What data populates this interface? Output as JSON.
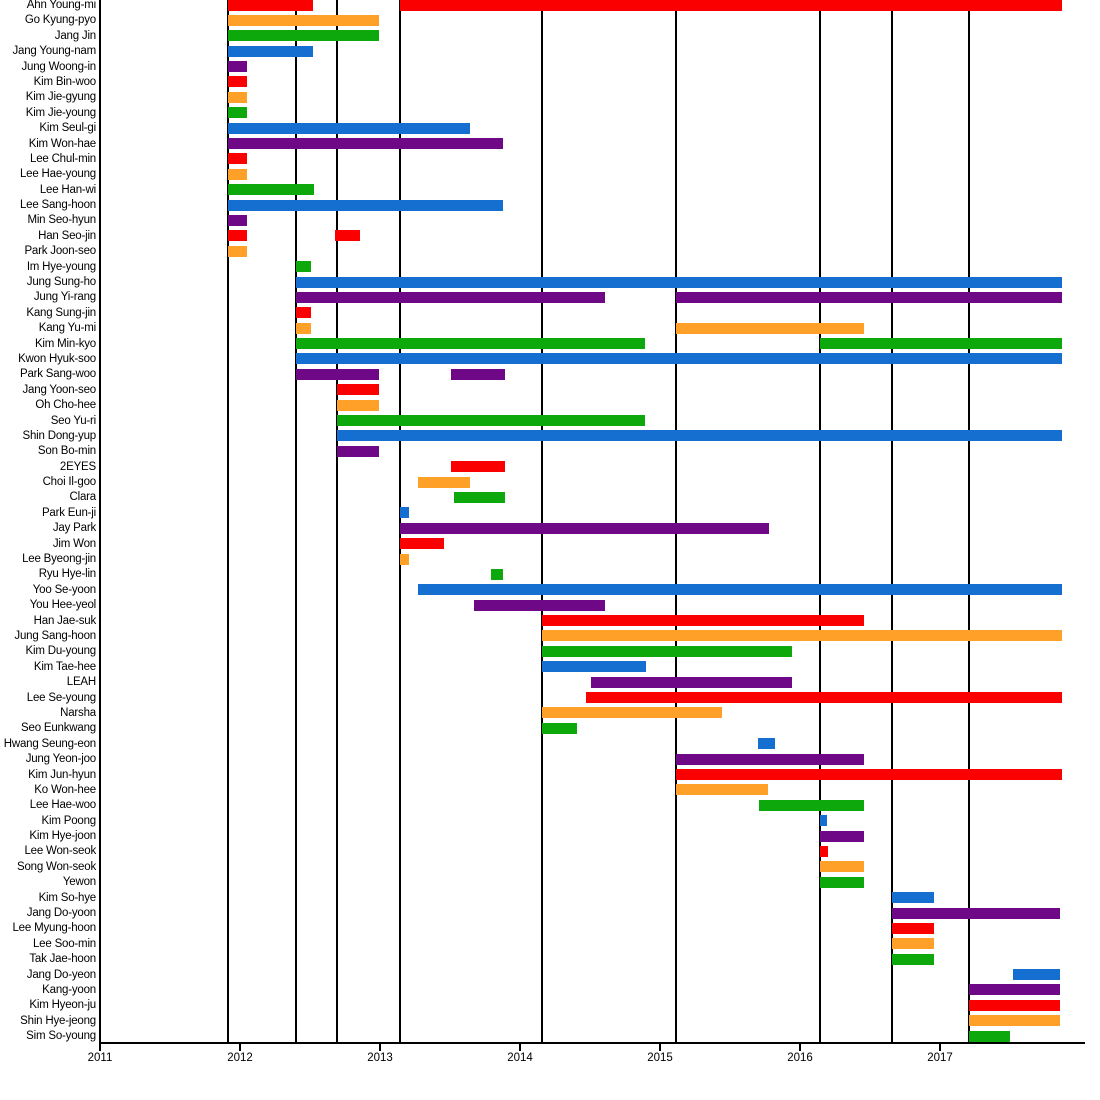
{
  "chart_data": {
    "type": "bar",
    "subtype": "gantt-timeline",
    "title": "",
    "xlabel": "",
    "ylabel": "",
    "legend": "none",
    "x_axis": {
      "range": [
        2011,
        2018.05
      ],
      "ticks": [
        {
          "value": 2011,
          "label": "2011"
        },
        {
          "value": 2012,
          "label": "2012"
        },
        {
          "value": 2013,
          "label": "2013"
        },
        {
          "value": 2014,
          "label": "2014"
        },
        {
          "value": 2015,
          "label": "2015"
        },
        {
          "value": 2016,
          "label": "2016"
        },
        {
          "value": 2017,
          "label": "2017"
        }
      ],
      "season_gridlines": [
        2011.914,
        2012.4,
        2012.693,
        2013.143,
        2014.157,
        2015.114,
        2016.143,
        2016.657,
        2017.207
      ]
    },
    "palette": {
      "red": "#FB0000",
      "orange": "#FFA128",
      "green": "#0CA80C",
      "blue": "#146FD0",
      "purple": "#6E0887"
    },
    "axis_color": "#000000",
    "members": [
      {
        "name": "Ahn Young-mi",
        "color": "red",
        "bars": [
          [
            2011.914,
            2012.52
          ],
          [
            2013.143,
            2017.87
          ]
        ]
      },
      {
        "name": "Go Kyung-pyo",
        "color": "orange",
        "bars": [
          [
            2011.914,
            2012.99
          ]
        ]
      },
      {
        "name": "Jang Jin",
        "color": "green",
        "bars": [
          [
            2011.914,
            2012.99
          ]
        ]
      },
      {
        "name": "Jang Young-nam",
        "color": "blue",
        "bars": [
          [
            2011.914,
            2012.52
          ]
        ]
      },
      {
        "name": "Jung Woong-in",
        "color": "purple",
        "bars": [
          [
            2011.914,
            2012.05
          ]
        ]
      },
      {
        "name": "Kim Bin-woo",
        "color": "red",
        "bars": [
          [
            2011.914,
            2012.05
          ]
        ]
      },
      {
        "name": "Kim Jie-gyung",
        "color": "orange",
        "bars": [
          [
            2011.914,
            2012.05
          ]
        ]
      },
      {
        "name": "Kim Jie-young",
        "color": "green",
        "bars": [
          [
            2011.914,
            2012.05
          ]
        ]
      },
      {
        "name": "Kim Seul-gi",
        "color": "blue",
        "bars": [
          [
            2011.914,
            2013.64
          ]
        ]
      },
      {
        "name": "Kim Won-hae",
        "color": "purple",
        "bars": [
          [
            2011.914,
            2013.88
          ]
        ]
      },
      {
        "name": "Lee Chul-min",
        "color": "red",
        "bars": [
          [
            2011.914,
            2012.05
          ]
        ]
      },
      {
        "name": "Lee Hae-young",
        "color": "orange",
        "bars": [
          [
            2011.914,
            2012.05
          ]
        ]
      },
      {
        "name": "Lee Han-wi",
        "color": "green",
        "bars": [
          [
            2011.914,
            2012.53
          ]
        ]
      },
      {
        "name": "Lee Sang-hoon",
        "color": "blue",
        "bars": [
          [
            2011.914,
            2013.88
          ]
        ]
      },
      {
        "name": "Min Seo-hyun",
        "color": "purple",
        "bars": [
          [
            2011.914,
            2012.05
          ]
        ]
      },
      {
        "name": "Han Seo-jin",
        "color": "red",
        "bars": [
          [
            2011.914,
            2012.05
          ],
          [
            2012.68,
            2012.86
          ]
        ]
      },
      {
        "name": "Park Joon-seo",
        "color": "orange",
        "bars": [
          [
            2011.914,
            2012.05
          ]
        ]
      },
      {
        "name": "Im Hye-young",
        "color": "green",
        "bars": [
          [
            2012.4,
            2012.51
          ]
        ]
      },
      {
        "name": "Jung Sung-ho",
        "color": "blue",
        "bars": [
          [
            2012.4,
            2017.87
          ]
        ]
      },
      {
        "name": "Jung Yi-rang",
        "color": "purple",
        "bars": [
          [
            2012.4,
            2014.61
          ],
          [
            2015.114,
            2017.87
          ]
        ]
      },
      {
        "name": "Kang Sung-jin",
        "color": "red",
        "bars": [
          [
            2012.4,
            2012.51
          ]
        ]
      },
      {
        "name": "Kang Yu-mi",
        "color": "orange",
        "bars": [
          [
            2012.4,
            2012.51
          ],
          [
            2015.114,
            2016.46
          ]
        ]
      },
      {
        "name": "Kim Min-kyo",
        "color": "green",
        "bars": [
          [
            2012.4,
            2014.89
          ],
          [
            2016.143,
            2017.87
          ]
        ]
      },
      {
        "name": "Kwon Hyuk-soo",
        "color": "blue",
        "bars": [
          [
            2012.4,
            2017.87
          ]
        ]
      },
      {
        "name": "Park Sang-woo",
        "color": "purple",
        "bars": [
          [
            2012.4,
            2012.99
          ],
          [
            2013.51,
            2013.89
          ]
        ]
      },
      {
        "name": "Jang Yoon-seo",
        "color": "red",
        "bars": [
          [
            2012.693,
            2012.99
          ]
        ]
      },
      {
        "name": "Oh Cho-hee",
        "color": "orange",
        "bars": [
          [
            2012.693,
            2012.99
          ]
        ]
      },
      {
        "name": "Seo Yu-ri",
        "color": "green",
        "bars": [
          [
            2012.693,
            2014.89
          ]
        ]
      },
      {
        "name": "Shin Dong-yup",
        "color": "blue",
        "bars": [
          [
            2012.693,
            2017.87
          ]
        ]
      },
      {
        "name": "Son Bo-min",
        "color": "purple",
        "bars": [
          [
            2012.693,
            2012.99
          ]
        ]
      },
      {
        "name": "2EYES",
        "color": "red",
        "bars": [
          [
            2013.51,
            2013.89
          ]
        ]
      },
      {
        "name": "Choi Il-goo",
        "color": "orange",
        "bars": [
          [
            2013.27,
            2013.64
          ]
        ]
      },
      {
        "name": "Clara",
        "color": "green",
        "bars": [
          [
            2013.53,
            2013.89
          ]
        ]
      },
      {
        "name": "Park Eun-ji",
        "color": "blue",
        "bars": [
          [
            2013.143,
            2013.21
          ]
        ]
      },
      {
        "name": "Jay Park",
        "color": "purple",
        "bars": [
          [
            2013.143,
            2015.78
          ]
        ]
      },
      {
        "name": "Jim Won",
        "color": "red",
        "bars": [
          [
            2013.143,
            2013.46
          ]
        ]
      },
      {
        "name": "Lee Byeong-jin",
        "color": "orange",
        "bars": [
          [
            2013.143,
            2013.21
          ]
        ]
      },
      {
        "name": "Ryu Hye-lin",
        "color": "green",
        "bars": [
          [
            2013.79,
            2013.88
          ]
        ]
      },
      {
        "name": "Yoo Se-yoon",
        "color": "blue",
        "bars": [
          [
            2013.27,
            2017.87
          ]
        ]
      },
      {
        "name": "You Hee-yeol",
        "color": "purple",
        "bars": [
          [
            2013.67,
            2014.61
          ]
        ]
      },
      {
        "name": "Han Jae-suk",
        "color": "red",
        "bars": [
          [
            2014.157,
            2016.46
          ]
        ]
      },
      {
        "name": "Jung Sang-hoon",
        "color": "orange",
        "bars": [
          [
            2014.157,
            2017.87
          ]
        ]
      },
      {
        "name": "Kim Du-young",
        "color": "green",
        "bars": [
          [
            2014.157,
            2015.94
          ]
        ]
      },
      {
        "name": "Kim Tae-hee",
        "color": "blue",
        "bars": [
          [
            2014.157,
            2014.9
          ]
        ]
      },
      {
        "name": "LEAH",
        "color": "purple",
        "bars": [
          [
            2014.51,
            2015.94
          ]
        ]
      },
      {
        "name": "Lee Se-young",
        "color": "red",
        "bars": [
          [
            2014.47,
            2017.87
          ]
        ]
      },
      {
        "name": "Narsha",
        "color": "orange",
        "bars": [
          [
            2014.157,
            2015.44
          ]
        ]
      },
      {
        "name": "Seo Eunkwang",
        "color": "green",
        "bars": [
          [
            2014.157,
            2014.41
          ]
        ]
      },
      {
        "name": "Hwang Seung-eon",
        "color": "blue",
        "bars": [
          [
            2015.7,
            2015.82
          ]
        ]
      },
      {
        "name": "Jung Yeon-joo",
        "color": "purple",
        "bars": [
          [
            2015.114,
            2016.46
          ]
        ]
      },
      {
        "name": "Kim Jun-hyun",
        "color": "red",
        "bars": [
          [
            2015.114,
            2017.87
          ]
        ]
      },
      {
        "name": "Ko Won-hee",
        "color": "orange",
        "bars": [
          [
            2015.114,
            2015.77
          ]
        ]
      },
      {
        "name": "Lee Hae-woo",
        "color": "green",
        "bars": [
          [
            2015.71,
            2016.46
          ]
        ]
      },
      {
        "name": "Kim Poong",
        "color": "blue",
        "bars": [
          [
            2016.143,
            2016.19
          ]
        ]
      },
      {
        "name": "Kim Hye-joon",
        "color": "purple",
        "bars": [
          [
            2016.143,
            2016.46
          ]
        ]
      },
      {
        "name": "Lee Won-seok",
        "color": "red",
        "bars": [
          [
            2016.143,
            2016.2
          ]
        ]
      },
      {
        "name": "Song Won-seok",
        "color": "orange",
        "bars": [
          [
            2016.143,
            2016.46
          ]
        ]
      },
      {
        "name": "Yewon",
        "color": "green",
        "bars": [
          [
            2016.143,
            2016.46
          ]
        ]
      },
      {
        "name": "Kim So-hye",
        "color": "blue",
        "bars": [
          [
            2016.657,
            2016.96
          ]
        ]
      },
      {
        "name": "Jang Do-yoon",
        "color": "purple",
        "bars": [
          [
            2016.657,
            2017.86
          ]
        ]
      },
      {
        "name": "Lee Myung-hoon",
        "color": "red",
        "bars": [
          [
            2016.657,
            2016.96
          ]
        ]
      },
      {
        "name": "Lee Soo-min",
        "color": "orange",
        "bars": [
          [
            2016.657,
            2016.96
          ]
        ]
      },
      {
        "name": "Tak Jae-hoon",
        "color": "green",
        "bars": [
          [
            2016.657,
            2016.96
          ]
        ]
      },
      {
        "name": "Jang Do-yeon",
        "color": "blue",
        "bars": [
          [
            2017.52,
            2017.86
          ]
        ]
      },
      {
        "name": "Kang-yoon",
        "color": "purple",
        "bars": [
          [
            2017.207,
            2017.86
          ]
        ]
      },
      {
        "name": "Kim Hyeon-ju",
        "color": "red",
        "bars": [
          [
            2017.207,
            2017.86
          ]
        ]
      },
      {
        "name": "Shin Hye-jeong",
        "color": "orange",
        "bars": [
          [
            2017.207,
            2017.86
          ]
        ]
      },
      {
        "name": "Sim So-young",
        "color": "green",
        "bars": [
          [
            2017.207,
            2017.5
          ]
        ]
      }
    ]
  }
}
